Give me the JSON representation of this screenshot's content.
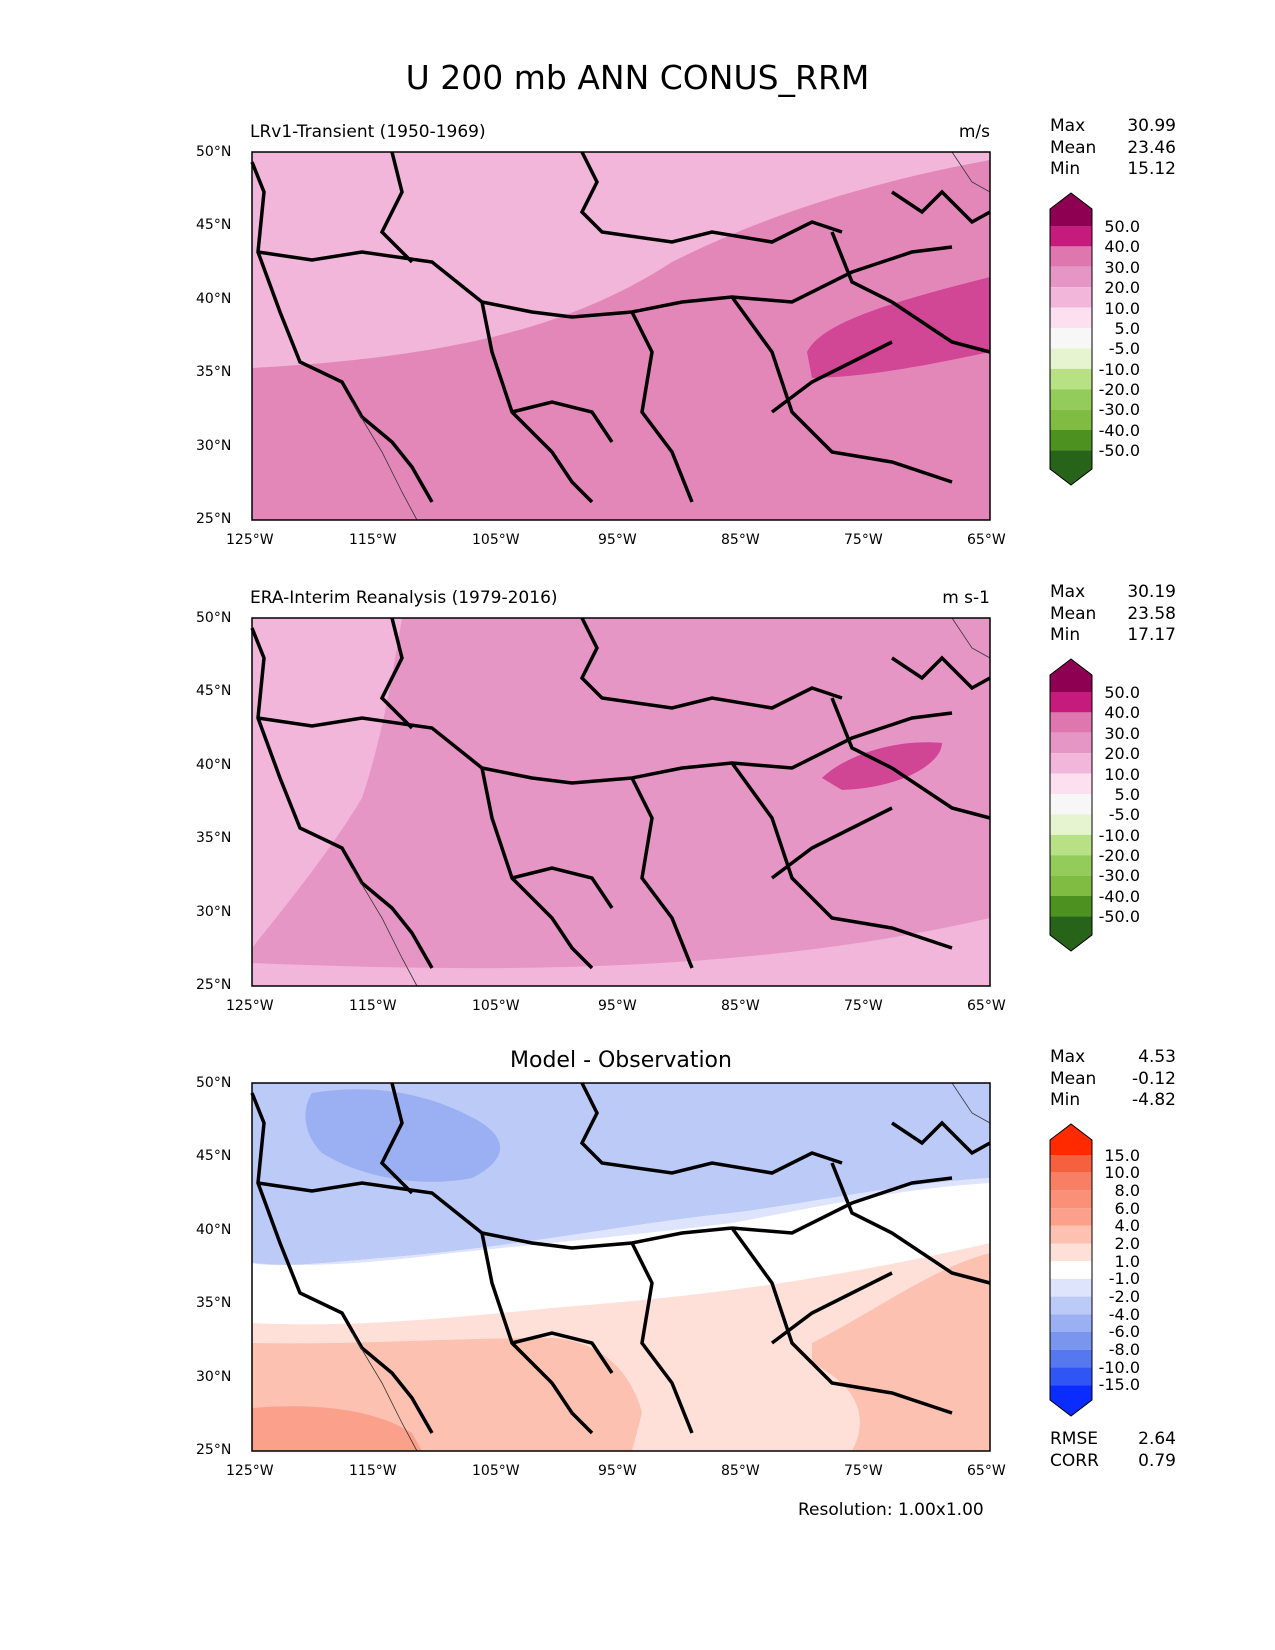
{
  "title": "U 200 mb ANN CONUS_RRM",
  "footer": "Resolution: 1.00x1.00",
  "axes": {
    "lon_ticks": [
      "125°W",
      "115°W",
      "105°W",
      "95°W",
      "85°W",
      "75°W",
      "65°W"
    ],
    "lat_ticks": [
      "50°N",
      "45°N",
      "40°N",
      "35°N",
      "30°N",
      "25°N"
    ]
  },
  "colors": {
    "pink_levels": [
      "#276419",
      "#4d9221",
      "#7fbc41",
      "#b8e186",
      "#e6f5d0",
      "#f7f7f7",
      "#fde0ef",
      "#f1b6da",
      "#de77ae",
      "#c51b7d",
      "#8e0152"
    ],
    "diff_levels": [
      "#0a2cff",
      "#2f55f5",
      "#5577f0",
      "#7995ee",
      "#9bb0f2",
      "#bccaf7",
      "#dde4fb",
      "#ffffff",
      "#ffe0d8",
      "#fcc1b0",
      "#fba08a",
      "#f87f64",
      "#f5603f",
      "#ff2a00"
    ]
  },
  "chart_data": [
    {
      "type": "heatmap",
      "panel": "LRv1-Transient (1950-1969)",
      "units": "m/s",
      "stats": {
        "max_label": "Max",
        "max": "30.99",
        "mean_label": "Mean",
        "mean": "23.46",
        "min_label": "Min",
        "min": "15.12"
      },
      "colorbar_labels": [
        "50.0",
        "40.0",
        "30.0",
        "20.0",
        "10.0",
        "5.0",
        "-5.0",
        "-10.0",
        "-20.0",
        "-30.0",
        "-40.0",
        "-50.0"
      ],
      "xlim": [
        -125,
        -65
      ],
      "ylim": [
        25,
        50
      ]
    },
    {
      "type": "heatmap",
      "panel": "ERA-Interim Reanalysis (1979-2016)",
      "units": "m s-1",
      "stats": {
        "max_label": "Max",
        "max": "30.19",
        "mean_label": "Mean",
        "mean": "23.58",
        "min_label": "Min",
        "min": "17.17"
      },
      "colorbar_labels": [
        "50.0",
        "40.0",
        "30.0",
        "20.0",
        "10.0",
        "5.0",
        "-5.0",
        "-10.0",
        "-20.0",
        "-30.0",
        "-40.0",
        "-50.0"
      ],
      "xlim": [
        -125,
        -65
      ],
      "ylim": [
        25,
        50
      ]
    },
    {
      "type": "heatmap",
      "panel": "Model - Observation",
      "stats": {
        "max_label": "Max",
        "max": "4.53",
        "mean_label": "Mean",
        "mean": "-0.12",
        "min_label": "Min",
        "min": "-4.82"
      },
      "colorbar_labels": [
        "15.0",
        "10.0",
        "8.0",
        "6.0",
        "4.0",
        "2.0",
        "1.0",
        "-1.0",
        "-2.0",
        "-4.0",
        "-6.0",
        "-8.0",
        "-10.0",
        "-15.0"
      ],
      "metrics": {
        "rmse_label": "RMSE",
        "rmse": "2.64",
        "corr_label": "CORR",
        "corr": "0.79"
      },
      "xlim": [
        -125,
        -65
      ],
      "ylim": [
        25,
        50
      ]
    }
  ]
}
